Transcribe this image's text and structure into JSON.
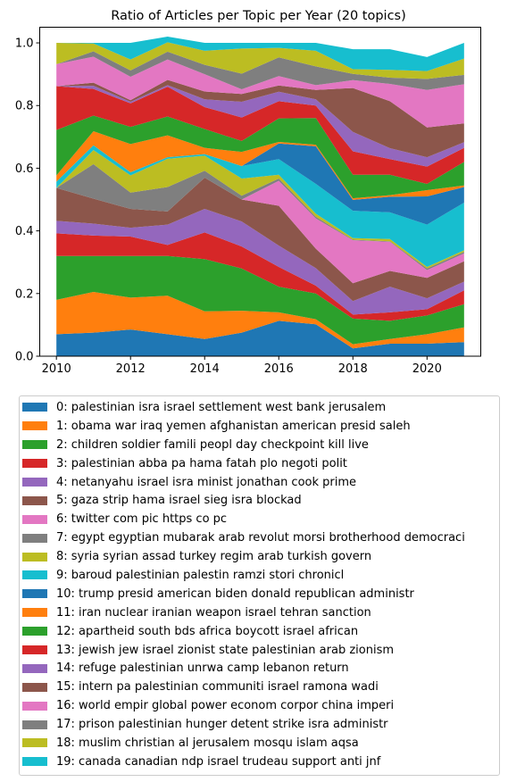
{
  "chart_data": {
    "type": "area",
    "title": "Ratio of Articles per Topic per Year (20 topics)",
    "xlabel": "",
    "ylabel": "",
    "xlim": [
      2009.55,
      2021.45
    ],
    "ylim": [
      0,
      1.05
    ],
    "xticks": [
      2010,
      2012,
      2014,
      2016,
      2018,
      2020
    ],
    "yticks": [
      0.0,
      0.2,
      0.4,
      0.6,
      0.8,
      1.0
    ],
    "xtick_labels": [
      "2010",
      "2012",
      "2014",
      "2016",
      "2018",
      "2020"
    ],
    "ytick_labels": [
      "0.0",
      "0.2",
      "0.4",
      "0.6",
      "0.8",
      "1.0"
    ],
    "grid": false,
    "legend_position": "below",
    "x": [
      2010,
      2011,
      2012,
      2013,
      2014,
      2015,
      2016,
      2017,
      2018,
      2019,
      2020,
      2021
    ],
    "series": [
      {
        "name": "0: palestinian isra israel settlement west bank jerusalem",
        "color": "#1f77b4",
        "values": [
          0.07,
          0.075,
          0.085,
          0.07,
          0.055,
          0.075,
          0.113,
          0.102,
          0.025,
          0.04,
          0.04,
          0.045
        ]
      },
      {
        "name": "1: obama war iraq yemen afghanistan american presid saleh",
        "color": "#ff7f0e",
        "values": [
          0.11,
          0.13,
          0.102,
          0.123,
          0.088,
          0.07,
          0.027,
          0.016,
          0.013,
          0.015,
          0.03,
          0.047
        ]
      },
      {
        "name": "2: children soldier famili peopl day checkpoint kill live",
        "color": "#2ca02c",
        "values": [
          0.14,
          0.115,
          0.133,
          0.127,
          0.167,
          0.135,
          0.082,
          0.082,
          0.082,
          0.058,
          0.06,
          0.074
        ]
      },
      {
        "name": "3: palestinian abba pa hama fatah plo negoti polit",
        "color": "#d62728",
        "values": [
          0.072,
          0.065,
          0.062,
          0.035,
          0.085,
          0.07,
          0.063,
          0.025,
          0.013,
          0.027,
          0.02,
          0.044
        ]
      },
      {
        "name": "4: netanyahu israel isra minist jonathan cook prime",
        "color": "#9467bd",
        "values": [
          0.04,
          0.038,
          0.028,
          0.065,
          0.075,
          0.08,
          0.068,
          0.056,
          0.043,
          0.082,
          0.035,
          0.028
        ]
      },
      {
        "name": "5: gaza strip hama israel sieg isra blockad",
        "color": "#8c564b",
        "values": [
          0.105,
          0.08,
          0.06,
          0.042,
          0.1,
          0.07,
          0.127,
          0.062,
          0.057,
          0.05,
          0.065,
          0.065
        ]
      },
      {
        "name": "6: twitter com pic https co pc",
        "color": "#e377c2",
        "values": [
          0.0,
          0.0,
          0.0,
          0.0,
          0.0,
          0.0,
          0.08,
          0.097,
          0.137,
          0.093,
          0.025,
          0.025
        ]
      },
      {
        "name": "7: egypt egyptian mubarak arab revolut morsi brotherhood democraci",
        "color": "#7f7f7f",
        "values": [
          0.0,
          0.11,
          0.052,
          0.078,
          0.022,
          0.012,
          0.007,
          0.005,
          0.002,
          0.002,
          0.005,
          0.005
        ]
      },
      {
        "name": "8: syria syrian assad turkey regim arab turkish govern",
        "color": "#bcbd22",
        "values": [
          0.0,
          0.045,
          0.055,
          0.09,
          0.048,
          0.055,
          0.012,
          0.01,
          0.005,
          0.007,
          0.005,
          0.005
        ]
      },
      {
        "name": "9: baroud palestinian palestin ramzi stori chronicl",
        "color": "#17becf",
        "values": [
          0.02,
          0.015,
          0.01,
          0.005,
          0.005,
          0.04,
          0.05,
          0.095,
          0.087,
          0.085,
          0.135,
          0.152
        ]
      },
      {
        "name": "10: trump presid american biden donald republican administr",
        "color": "#1f77b4",
        "values": [
          0.0,
          0.0,
          0.0,
          0.0,
          0.0,
          0.0,
          0.05,
          0.12,
          0.035,
          0.05,
          0.09,
          0.05
        ]
      },
      {
        "name": "11: iran nuclear iranian weapon israel tehran sanction",
        "color": "#ff7f0e",
        "values": [
          0.02,
          0.045,
          0.09,
          0.07,
          0.02,
          0.045,
          0.005,
          0.005,
          0.005,
          0.005,
          0.02,
          0.005
        ]
      },
      {
        "name": "12: apartheid south bds africa boycott israel african",
        "color": "#2ca02c",
        "values": [
          0.145,
          0.05,
          0.055,
          0.06,
          0.06,
          0.035,
          0.075,
          0.085,
          0.075,
          0.065,
          0.02,
          0.075
        ]
      },
      {
        "name": "13: jewish jew israel zionist state palestinian arab zionism",
        "color": "#d62728",
        "values": [
          0.14,
          0.085,
          0.075,
          0.095,
          0.07,
          0.075,
          0.055,
          0.04,
          0.075,
          0.05,
          0.055,
          0.045
        ]
      },
      {
        "name": "14: refuge palestinian unrwa camp lebanon return",
        "color": "#9467bd",
        "values": [
          0.0,
          0.01,
          0.005,
          0.005,
          0.025,
          0.05,
          0.03,
          0.02,
          0.062,
          0.035,
          0.03,
          0.018
        ]
      },
      {
        "name": "15: intern pa palestinian communiti israel ramona wadi",
        "color": "#8c564b",
        "values": [
          0.0,
          0.01,
          0.005,
          0.017,
          0.025,
          0.025,
          0.02,
          0.03,
          0.14,
          0.15,
          0.095,
          0.06
        ]
      },
      {
        "name": "16: world empir global power econom corpor china imperi",
        "color": "#e377c2",
        "values": [
          0.07,
          0.083,
          0.075,
          0.065,
          0.055,
          0.015,
          0.03,
          0.015,
          0.025,
          0.055,
          0.12,
          0.125
        ]
      },
      {
        "name": "17: prison palestinian hunger detent strike isra administr",
        "color": "#7f7f7f",
        "values": [
          0.0,
          0.017,
          0.02,
          0.025,
          0.03,
          0.05,
          0.06,
          0.06,
          0.02,
          0.02,
          0.035,
          0.03
        ]
      },
      {
        "name": "18: muslim christian al jerusalem mosqu islam aqsa",
        "color": "#bcbd22",
        "values": [
          0.068,
          0.025,
          0.035,
          0.03,
          0.045,
          0.08,
          0.03,
          0.05,
          0.015,
          0.025,
          0.025,
          0.052
        ]
      },
      {
        "name": "19: canada canadian ndp israel trudeau support anti jnf",
        "color": "#17becf",
        "values": [
          0.0,
          0.002,
          0.053,
          0.018,
          0.025,
          0.018,
          0.016,
          0.025,
          0.064,
          0.066,
          0.045,
          0.05
        ]
      }
    ]
  }
}
